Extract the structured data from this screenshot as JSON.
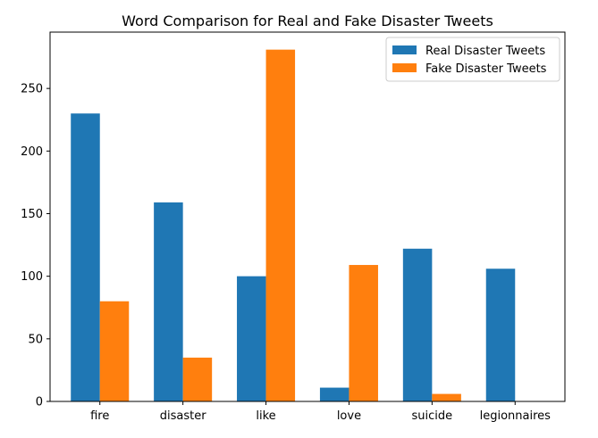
{
  "chart_data": {
    "type": "bar",
    "title": "Word Comparison for Real and Fake Disaster Tweets",
    "xlabel": "",
    "ylabel": "",
    "categories": [
      "fire",
      "disaster",
      "like",
      "love",
      "suicide",
      "legionnaires"
    ],
    "series": [
      {
        "name": "Real Disaster Tweets",
        "values": [
          230,
          159,
          100,
          11,
          122,
          106
        ],
        "color": "#1f77b4"
      },
      {
        "name": "Fake Disaster Tweets",
        "values": [
          80,
          35,
          281,
          109,
          6,
          0
        ],
        "color": "#ff7f0e"
      }
    ],
    "ylim": [
      0,
      295
    ],
    "yticks": [
      0,
      50,
      100,
      150,
      200,
      250
    ],
    "grid": false,
    "legend": "top-right"
  }
}
